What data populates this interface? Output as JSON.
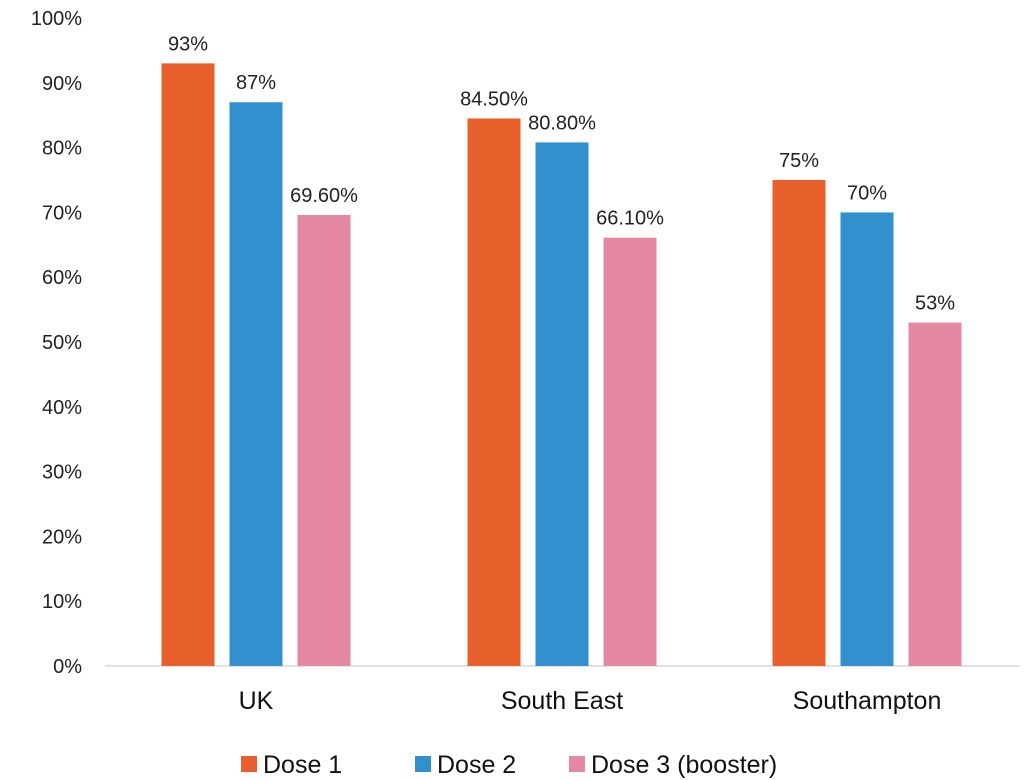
{
  "chart_data": {
    "type": "bar",
    "title": "",
    "xlabel": "",
    "ylabel": "",
    "categories": [
      "UK",
      "South East",
      "Southampton"
    ],
    "series": [
      {
        "name": "Dose 1",
        "color": "#E8612C",
        "values": [
          93,
          84.5,
          75
        ],
        "labels": [
          "93%",
          "84.50%",
          "75%"
        ]
      },
      {
        "name": "Dose 2",
        "color": "#3390CE",
        "values": [
          87,
          80.8,
          70
        ],
        "labels": [
          "87%",
          "80.80%",
          "70%"
        ]
      },
      {
        "name": "Dose 3 (booster)",
        "color": "#E489A1",
        "values": [
          69.6,
          66.1,
          53
        ],
        "labels": [
          "69.60%",
          "66.10%",
          "53%"
        ]
      }
    ],
    "ylim": [
      0,
      100
    ],
    "yticks": [
      0,
      10,
      20,
      30,
      40,
      50,
      60,
      70,
      80,
      90,
      100
    ],
    "ytick_labels": [
      "0%",
      "10%",
      "20%",
      "30%",
      "40%",
      "50%",
      "60%",
      "70%",
      "80%",
      "90%",
      "100%"
    ],
    "grid": false,
    "legend_position": "bottom"
  }
}
